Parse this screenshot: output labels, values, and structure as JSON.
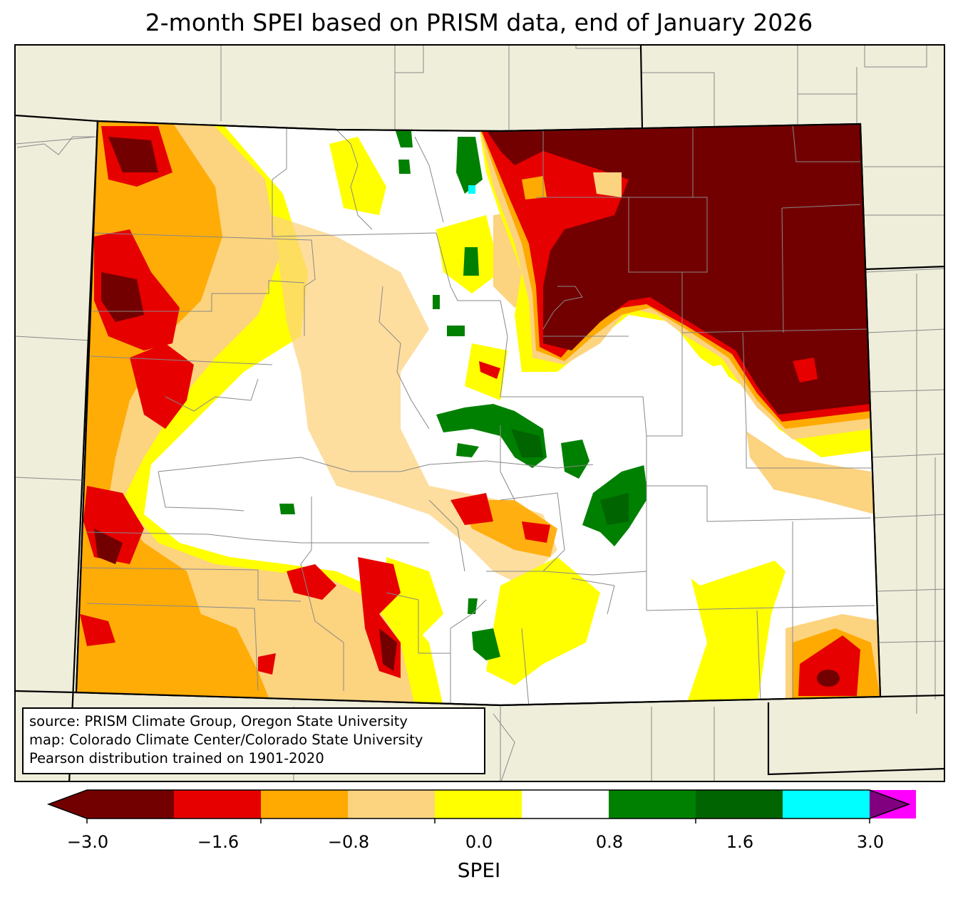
{
  "title": "2-month SPEI based on PRISM data, end of January 2026",
  "source_lines": [
    "source: PRISM Climate Group, Oregon State University",
    "map: Colorado Climate Center/Colorado State University",
    "Pearson distribution trained on 1901-2020"
  ],
  "colorbar": {
    "label": "SPEI",
    "ticks": [
      "−3.0",
      "−1.6",
      "−0.8",
      "0.0",
      "0.8",
      "1.6",
      "3.0"
    ],
    "tick_values": [
      -3.0,
      -1.6,
      -0.8,
      0.0,
      0.8,
      1.6,
      3.0
    ],
    "bounds": [
      -3.0,
      -2.0,
      -1.6,
      -1.2,
      -0.8,
      -0.4,
      0.4,
      0.8,
      1.2,
      1.6,
      2.0,
      3.0
    ],
    "colors": [
      "#730000",
      "#e60000",
      "#ffaa00",
      "#fcd37f",
      "#ffff00",
      "#ffffff",
      "#008000",
      "#006400",
      "#00ffff",
      "#800080",
      "#ff00ff"
    ],
    "extend": "both"
  },
  "map_colors": {
    "background": "#efeedb",
    "state_fill": "#ffffff",
    "extreme_dry": "#730000",
    "severe_dry": "#e60000",
    "moderate_dry": "#ffaa00",
    "mild_dry": "#fcd37f",
    "slight_dry": "#ffff00",
    "moderate_wet": "#008000",
    "very_wet": "#006400",
    "extreme_wet": "#00ffff"
  }
}
